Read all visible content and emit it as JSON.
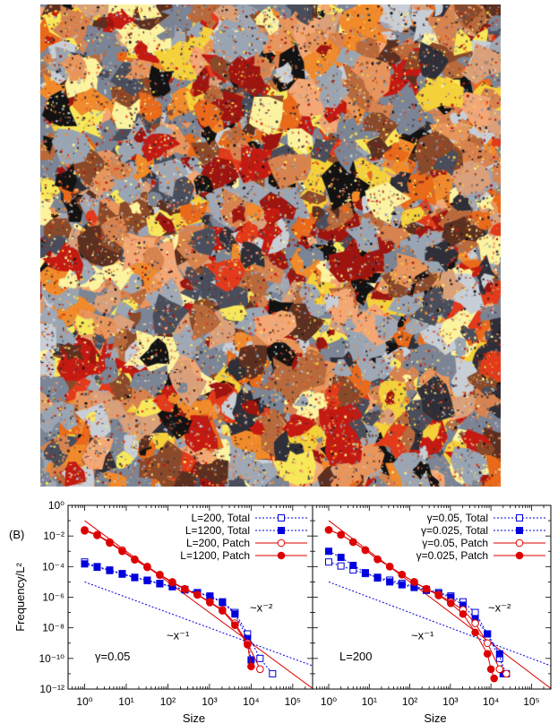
{
  "panel_label": "(B)",
  "mosaic_colors": [
    "#7b8596",
    "#9aa5b3",
    "#c8ced6",
    "#4a4e5c",
    "#2e2f38",
    "#121212",
    "#e8955c",
    "#f2a775",
    "#d7834f",
    "#b86a3c",
    "#8a4a2a",
    "#5c3020",
    "#f4d13a",
    "#f7e85a",
    "#fbf3a0",
    "#c41a12",
    "#e23a1a",
    "#9e1510",
    "#e86a1a",
    "#f08a2a",
    "#a0a8b5",
    "#d9a07a"
  ],
  "colors": {
    "blue": "#0000dd",
    "red": "#dd0000"
  },
  "chart_data": [
    {
      "type": "scatter",
      "xlabel": "Size",
      "ylabel": "Frequency/L²",
      "xscale": "log",
      "yscale": "log",
      "xlim": [
        0.4,
        300000
      ],
      "ylim": [
        1e-12,
        1
      ],
      "xticks": [
        {
          "value": 1,
          "label": "10⁰"
        },
        {
          "value": 10,
          "label": "10¹"
        },
        {
          "value": 100,
          "label": "10²"
        },
        {
          "value": 1000,
          "label": "10³"
        },
        {
          "value": 10000,
          "label": "10⁴"
        },
        {
          "value": 100000,
          "label": "10⁵"
        }
      ],
      "yticks": [
        {
          "value": 1,
          "label": "10⁰"
        },
        {
          "value": 0.01,
          "label": "10⁻²"
        },
        {
          "value": 0.0001,
          "label": "10⁻⁴"
        },
        {
          "value": 1e-06,
          "label": "10⁻⁶"
        },
        {
          "value": 1e-08,
          "label": "10⁻⁸"
        },
        {
          "value": 1e-10,
          "label": "10⁻¹⁰"
        },
        {
          "value": 1e-12,
          "label": "10⁻¹²"
        }
      ],
      "annotation": "γ=0.05",
      "legend_position": "top-right",
      "reference_lines": [
        {
          "label": "~x⁻²",
          "points": [
            [
              1,
              0.1
            ],
            [
              300000,
              1.1e-12
            ]
          ],
          "color": "#dd0000",
          "dash": false
        },
        {
          "label": "~x⁻¹",
          "points": [
            [
              1,
              1e-05
            ],
            [
              300000,
              3.3e-11
            ]
          ],
          "color": "#0000dd",
          "dash": true
        }
      ],
      "series": [
        {
          "name": "L=200, Total",
          "color": "#0000dd",
          "marker": "square-open",
          "line": "dotted",
          "x": [
            1,
            2,
            4,
            8,
            16,
            32,
            64,
            128,
            256,
            512,
            1024,
            2048,
            4096,
            8192,
            16384,
            32768
          ],
          "y": [
            0.0002,
            0.0001,
            6e-05,
            3.5e-05,
            2e-05,
            1.3e-05,
            8e-06,
            5e-06,
            3.2e-06,
            2e-06,
            1.2e-06,
            5e-07,
            1e-07,
            4e-09,
            1e-10,
            1e-11
          ]
        },
        {
          "name": "L=1200, Total",
          "color": "#0000dd",
          "marker": "square-filled",
          "line": "dotted",
          "x": [
            1,
            2,
            4,
            8,
            16,
            32,
            64,
            128,
            256,
            512,
            1024,
            2048,
            4096,
            8192,
            10000
          ],
          "y": [
            0.00015,
            9e-05,
            5.5e-05,
            3.2e-05,
            1.9e-05,
            1.2e-05,
            7.5e-06,
            4.8e-06,
            3e-06,
            1.9e-06,
            1.1e-06,
            4.5e-07,
            8e-08,
            2e-09,
            8e-11
          ]
        },
        {
          "name": "L=200, Patch",
          "color": "#dd0000",
          "marker": "circle-open",
          "line": "solid",
          "x": [
            1,
            2,
            4,
            8,
            16,
            32,
            64,
            128,
            256,
            512,
            1024,
            2048,
            4096,
            8192,
            16384
          ],
          "y": [
            0.025,
            0.012,
            0.004,
            0.0012,
            0.0003,
            0.0001,
            3e-05,
            1e-05,
            3.5e-06,
            1.5e-06,
            5e-07,
            1.5e-07,
            2e-08,
            1e-09,
            2e-11
          ]
        },
        {
          "name": "L=1200, Patch",
          "color": "#dd0000",
          "marker": "circle-filled",
          "line": "solid",
          "x": [
            1,
            2,
            4,
            8,
            16,
            32,
            64,
            128,
            256,
            512,
            1024,
            2048,
            4096,
            8192,
            10000
          ],
          "y": [
            0.022,
            0.011,
            0.0035,
            0.001,
            0.00028,
            9e-05,
            2.8e-05,
            9e-06,
            3.3e-06,
            1.4e-06,
            4.5e-07,
            1.3e-07,
            1.5e-08,
            8e-10,
            3e-11
          ]
        }
      ]
    },
    {
      "type": "scatter",
      "xlabel": "Size",
      "ylabel": "",
      "xscale": "log",
      "yscale": "log",
      "xlim": [
        0.4,
        300000
      ],
      "ylim": [
        1e-12,
        1
      ],
      "xticks": [
        {
          "value": 1,
          "label": "10⁰"
        },
        {
          "value": 10,
          "label": "10¹"
        },
        {
          "value": 100,
          "label": "10²"
        },
        {
          "value": 1000,
          "label": "10³"
        },
        {
          "value": 10000,
          "label": "10⁴"
        },
        {
          "value": 100000,
          "label": "10⁵"
        }
      ],
      "yticks": [],
      "annotation": "L=200",
      "legend_position": "top-right",
      "reference_lines": [
        {
          "label": "~x⁻²",
          "points": [
            [
              1,
              0.1
            ],
            [
              300000,
              1.1e-12
            ]
          ],
          "color": "#dd0000",
          "dash": false
        },
        {
          "label": "~x⁻¹",
          "points": [
            [
              1,
              1e-05
            ],
            [
              300000,
              3.3e-11
            ]
          ],
          "color": "#0000dd",
          "dash": true
        }
      ],
      "series": [
        {
          "name": "γ=0.05, Total",
          "color": "#0000dd",
          "marker": "square-open",
          "line": "dotted",
          "x": [
            1,
            2,
            4,
            8,
            16,
            32,
            64,
            128,
            256,
            512,
            1024,
            2048,
            4096,
            8192,
            16384,
            24000
          ],
          "y": [
            0.0002,
            0.00011,
            6e-05,
            3.5e-05,
            2e-05,
            1.3e-05,
            8e-06,
            5e-06,
            3.2e-06,
            2e-06,
            1.2e-06,
            5e-07,
            1e-07,
            4e-09,
            1e-10,
            1e-11
          ]
        },
        {
          "name": "γ=0.025, Total",
          "color": "#0000dd",
          "marker": "square-filled",
          "line": "dotted",
          "x": [
            1,
            2,
            4,
            8,
            16,
            32,
            64,
            128,
            256,
            512,
            1024,
            2048,
            4096,
            8192,
            16384,
            20000
          ],
          "y": [
            0.001,
            0.0004,
            0.00012,
            4e-05,
            1.8e-05,
            1e-05,
            6.5e-06,
            4.3e-06,
            2.8e-06,
            1.7e-06,
            1e-06,
            3e-07,
            4e-08,
            4e-09,
            2e-10,
            1e-11
          ]
        },
        {
          "name": "γ=0.05, Patch",
          "color": "#dd0000",
          "marker": "circle-open",
          "line": "solid",
          "x": [
            1,
            2,
            4,
            8,
            16,
            32,
            64,
            128,
            256,
            512,
            1024,
            2048,
            4096,
            8192,
            16384,
            24000
          ],
          "y": [
            0.025,
            0.012,
            0.004,
            0.0012,
            0.0003,
            0.0001,
            3e-05,
            1e-05,
            3.5e-06,
            1.5e-06,
            5e-07,
            1.5e-07,
            2e-08,
            1e-09,
            2e-11,
            1e-11
          ]
        },
        {
          "name": "γ=0.025, Patch",
          "color": "#dd0000",
          "marker": "circle-filled",
          "line": "solid",
          "x": [
            1,
            2,
            4,
            8,
            16,
            32,
            64,
            128,
            256,
            512,
            1024,
            2048,
            4096,
            8192,
            10000,
            12000
          ],
          "y": [
            0.025,
            0.012,
            0.004,
            0.0012,
            0.0003,
            0.0001,
            3e-05,
            1e-05,
            3.5e-06,
            1.3e-06,
            4e-07,
            8e-08,
            5e-09,
            2e-10,
            2e-11,
            5e-12
          ]
        }
      ]
    }
  ]
}
